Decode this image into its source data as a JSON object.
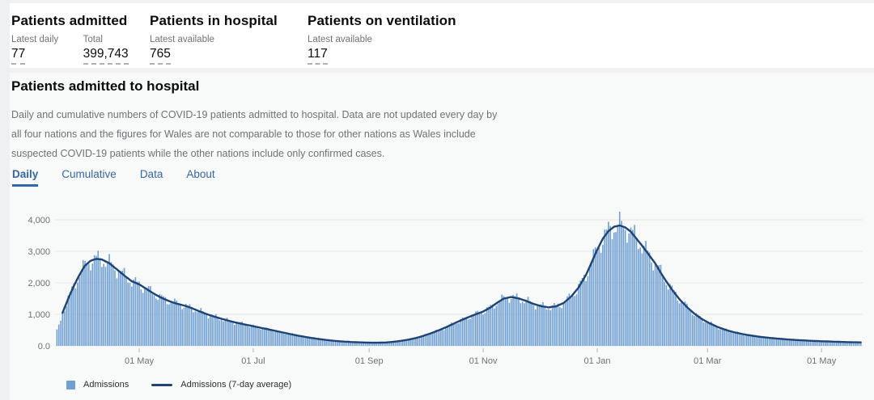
{
  "summary": {
    "cards": [
      {
        "title": "Patients admitted",
        "metrics": [
          {
            "label": "Latest daily",
            "value": "77"
          },
          {
            "label": "Total",
            "value": "399,743"
          }
        ]
      },
      {
        "title": "Patients in hospital",
        "metrics": [
          {
            "label": "Latest available",
            "value": "765"
          }
        ]
      },
      {
        "title": "Patients on ventilation",
        "metrics": [
          {
            "label": "Latest available",
            "value": "117"
          }
        ]
      }
    ]
  },
  "main": {
    "title": "Patients admitted to hospital",
    "description": "Daily and cumulative numbers of COVID-19 patients admitted to hospital. Data are not updated every day by all four nations and the figures for Wales are not comparable to those for other nations as Wales include suspected COVID-19 patients while the other nations include only confirmed cases.",
    "tabs": [
      {
        "label": "Daily",
        "active": true
      },
      {
        "label": "Cumulative",
        "active": false
      },
      {
        "label": "Data",
        "active": false
      },
      {
        "label": "About",
        "active": false
      }
    ]
  },
  "colors": {
    "bar": "#6f9fd3",
    "line": "#1e4475",
    "accent": "#3567a8"
  },
  "chart_data": {
    "type": "bar+line",
    "start_date": "2020-03-18",
    "end_date": "2021-05-22",
    "ylim": [
      0,
      4300
    ],
    "grid": true,
    "legend_position": "bottom-left",
    "series": [
      {
        "name": "Admissions",
        "type": "bar",
        "color": "#6f9fd3"
      },
      {
        "name": "Admissions (7-day average)",
        "type": "line",
        "color": "#1e4475"
      }
    ],
    "y_ticks": [
      {
        "value": 0,
        "label": "0.0"
      },
      {
        "value": 1000,
        "label": "1,000"
      },
      {
        "value": 2000,
        "label": "2,000"
      },
      {
        "value": 3000,
        "label": "3,000"
      },
      {
        "value": 4000,
        "label": "4,000"
      }
    ],
    "x_ticks": [
      {
        "date": "2020-05-01",
        "label": "01 May"
      },
      {
        "date": "2020-07-01",
        "label": "01 Jul"
      },
      {
        "date": "2020-09-01",
        "label": "01 Sep"
      },
      {
        "date": "2020-11-01",
        "label": "01 Nov"
      },
      {
        "date": "2021-01-01",
        "label": "01 Jan"
      },
      {
        "date": "2021-03-01",
        "label": "01 Mar"
      },
      {
        "date": "2021-05-01",
        "label": "01 May"
      }
    ],
    "line_start_offset": 3,
    "daily_variation": [
      0.08,
      0.04
    ],
    "average_anchors": [
      [
        "2020-03-18",
        480
      ],
      [
        "2020-03-19",
        620
      ],
      [
        "2020-03-20",
        820
      ],
      [
        "2020-03-21",
        1050
      ],
      [
        "2020-03-24",
        1500
      ],
      [
        "2020-03-27",
        1900
      ],
      [
        "2020-03-30",
        2250
      ],
      [
        "2020-04-02",
        2550
      ],
      [
        "2020-04-05",
        2700
      ],
      [
        "2020-04-08",
        2760
      ],
      [
        "2020-04-11",
        2740
      ],
      [
        "2020-04-15",
        2620
      ],
      [
        "2020-04-19",
        2430
      ],
      [
        "2020-04-23",
        2230
      ],
      [
        "2020-04-27",
        2050
      ],
      [
        "2020-05-01",
        1950
      ],
      [
        "2020-05-05",
        1800
      ],
      [
        "2020-05-09",
        1650
      ],
      [
        "2020-05-13",
        1520
      ],
      [
        "2020-05-17",
        1420
      ],
      [
        "2020-05-21",
        1340
      ],
      [
        "2020-05-25",
        1280
      ],
      [
        "2020-05-29",
        1200
      ],
      [
        "2020-06-02",
        1100
      ],
      [
        "2020-06-06",
        1010
      ],
      [
        "2020-06-10",
        930
      ],
      [
        "2020-06-14",
        860
      ],
      [
        "2020-06-18",
        795
      ],
      [
        "2020-06-22",
        735
      ],
      [
        "2020-06-26",
        685
      ],
      [
        "2020-06-30",
        635
      ],
      [
        "2020-07-04",
        585
      ],
      [
        "2020-07-08",
        535
      ],
      [
        "2020-07-12",
        485
      ],
      [
        "2020-07-16",
        435
      ],
      [
        "2020-07-20",
        385
      ],
      [
        "2020-07-24",
        335
      ],
      [
        "2020-07-28",
        292
      ],
      [
        "2020-08-01",
        252
      ],
      [
        "2020-08-05",
        218
      ],
      [
        "2020-08-09",
        188
      ],
      [
        "2020-08-13",
        162
      ],
      [
        "2020-08-17",
        142
      ],
      [
        "2020-08-21",
        127
      ],
      [
        "2020-08-25",
        116
      ],
      [
        "2020-08-29",
        107
      ],
      [
        "2020-09-02",
        101
      ],
      [
        "2020-09-06",
        100
      ],
      [
        "2020-09-10",
        108
      ],
      [
        "2020-09-14",
        128
      ],
      [
        "2020-09-18",
        158
      ],
      [
        "2020-09-22",
        198
      ],
      [
        "2020-09-26",
        248
      ],
      [
        "2020-09-30",
        318
      ],
      [
        "2020-10-04",
        398
      ],
      [
        "2020-10-08",
        488
      ],
      [
        "2020-10-12",
        588
      ],
      [
        "2020-10-16",
        698
      ],
      [
        "2020-10-20",
        808
      ],
      [
        "2020-10-24",
        908
      ],
      [
        "2020-10-28",
        1000
      ],
      [
        "2020-11-01",
        1090
      ],
      [
        "2020-11-05",
        1220
      ],
      [
        "2020-11-09",
        1390
      ],
      [
        "2020-11-12",
        1500
      ],
      [
        "2020-11-16",
        1550
      ],
      [
        "2020-11-20",
        1505
      ],
      [
        "2020-11-24",
        1425
      ],
      [
        "2020-11-28",
        1330
      ],
      [
        "2020-12-02",
        1260
      ],
      [
        "2020-12-06",
        1220
      ],
      [
        "2020-12-10",
        1255
      ],
      [
        "2020-12-14",
        1360
      ],
      [
        "2020-12-18",
        1560
      ],
      [
        "2020-12-22",
        1850
      ],
      [
        "2020-12-26",
        2250
      ],
      [
        "2020-12-29",
        2650
      ],
      [
        "2021-01-01",
        3050
      ],
      [
        "2021-01-04",
        3400
      ],
      [
        "2021-01-07",
        3640
      ],
      [
        "2021-01-10",
        3780
      ],
      [
        "2021-01-13",
        3820
      ],
      [
        "2021-01-16",
        3760
      ],
      [
        "2021-01-19",
        3620
      ],
      [
        "2021-01-22",
        3400
      ],
      [
        "2021-01-25",
        3180
      ],
      [
        "2021-01-28",
        2940
      ],
      [
        "2021-02-01",
        2620
      ],
      [
        "2021-02-04",
        2320
      ],
      [
        "2021-02-07",
        2040
      ],
      [
        "2021-02-10",
        1780
      ],
      [
        "2021-02-14",
        1480
      ],
      [
        "2021-02-18",
        1230
      ],
      [
        "2021-02-22",
        1020
      ],
      [
        "2021-02-26",
        850
      ],
      [
        "2021-03-02",
        720
      ],
      [
        "2021-03-06",
        610
      ],
      [
        "2021-03-10",
        520
      ],
      [
        "2021-03-14",
        450
      ],
      [
        "2021-03-18",
        395
      ],
      [
        "2021-03-22",
        350
      ],
      [
        "2021-03-26",
        312
      ],
      [
        "2021-03-30",
        280
      ],
      [
        "2021-04-03",
        255
      ],
      [
        "2021-04-07",
        232
      ],
      [
        "2021-04-11",
        212
      ],
      [
        "2021-04-15",
        195
      ],
      [
        "2021-04-19",
        180
      ],
      [
        "2021-04-23",
        168
      ],
      [
        "2021-04-27",
        157
      ],
      [
        "2021-05-01",
        147
      ],
      [
        "2021-05-05",
        138
      ],
      [
        "2021-05-09",
        130
      ],
      [
        "2021-05-13",
        122
      ],
      [
        "2021-05-17",
        115
      ],
      [
        "2021-05-22",
        110
      ]
    ]
  },
  "legend": {
    "items": [
      {
        "label": "Admissions",
        "type": "square"
      },
      {
        "label": "Admissions (7-day average)",
        "type": "line"
      }
    ]
  }
}
